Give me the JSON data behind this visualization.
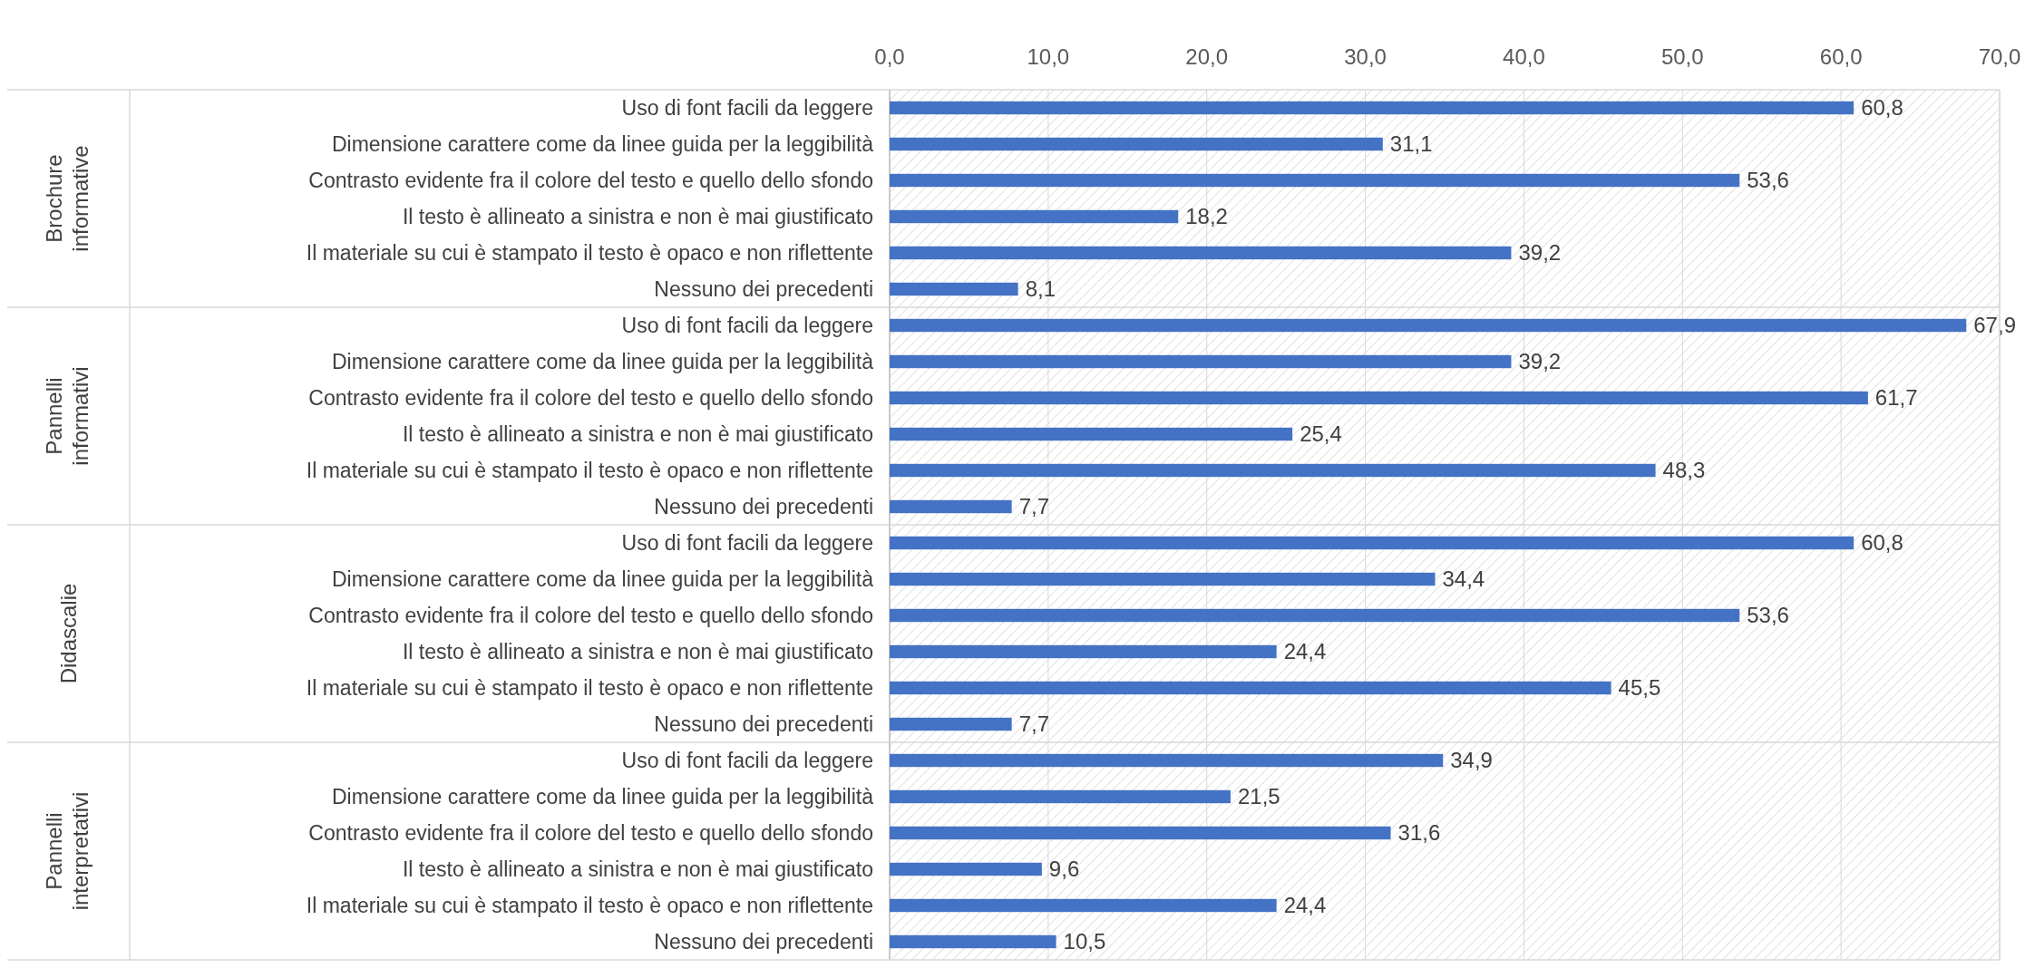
{
  "chart_data": [
    {
      "type": "bar",
      "orientation": "horizontal",
      "ylabel": "Brochure informative",
      "categories": [
        "Uso di font facili da leggere",
        "Dimensione carattere come da linee guida per la leggibilità",
        "Contrasto evidente fra il colore del testo e quello dello sfondo",
        "Il testo è allineato a sinistra e non è mai giustificato",
        "Il materiale su cui è stampato il testo è opaco e non riflettente",
        "Nessuno dei precedenti"
      ],
      "values": [
        60.8,
        31.1,
        53.6,
        18.2,
        39.2,
        8.1
      ],
      "value_labels": [
        "60,8",
        "31,1",
        "53,6",
        "18,2",
        "39,2",
        "8,1"
      ],
      "color": "#4472c4",
      "xlim": [
        0,
        70
      ],
      "xticks": [
        {
          "value": 0,
          "label": "0,0"
        },
        {
          "value": 10,
          "label": "10,0"
        },
        {
          "value": 20,
          "label": "20,0"
        },
        {
          "value": 30,
          "label": "30,0"
        },
        {
          "value": 40,
          "label": "40,0"
        },
        {
          "value": 50,
          "label": "50,0"
        },
        {
          "value": 60,
          "label": "60,0"
        },
        {
          "value": 70,
          "label": "70,0"
        }
      ],
      "grid": "x"
    },
    {
      "type": "bar",
      "orientation": "horizontal",
      "ylabel": "Pannelli informativi",
      "categories": [
        "Uso di font facili da leggere",
        "Dimensione carattere come da linee guida per la leggibilità",
        "Contrasto evidente fra il colore del testo e quello dello sfondo",
        "Il testo è allineato a sinistra e non è mai giustificato",
        "Il materiale su cui è stampato il testo è opaco e non riflettente",
        "Nessuno dei precedenti"
      ],
      "values": [
        67.9,
        39.2,
        61.7,
        25.4,
        48.3,
        7.7
      ],
      "value_labels": [
        "67,9",
        "39,2",
        "61,7",
        "25,4",
        "48,3",
        "7,7"
      ],
      "color": "#4472c4",
      "xlim": [
        0,
        70
      ],
      "tick_labels": "y",
      "grid": "x"
    },
    {
      "type": "bar",
      "orientation": "horizontal",
      "ylabel": "Didascalie",
      "categories": [
        "Uso di font facili da leggere",
        "Dimensione carattere come da linee guida per la leggibilità",
        "Contrasto evidente fra il colore del testo e quello dello sfondo",
        "Il testo è allineato a sinistra e non è mai giustificato",
        "Il materiale su cui è stampato il testo è opaco e non riflettente",
        "Nessuno dei precedenti"
      ],
      "values": [
        60.8,
        34.4,
        53.6,
        24.4,
        45.5,
        7.7
      ],
      "value_labels": [
        "60,8",
        "34,4",
        "53,6",
        "24,4",
        "45,5",
        "7,7"
      ],
      "color": "#4472c4",
      "xlim": [
        0,
        70
      ],
      "tick_labels": "y",
      "grid": "x"
    },
    {
      "type": "bar",
      "orientation": "horizontal",
      "ylabel": "Pannelli interpretativi",
      "categories": [
        "Uso di font facili da leggere",
        "Dimensione carattere come da linee guida per la leggibilità",
        "Contrasto evidente fra il colore del testo e quello dello sfondo",
        "Il testo è allineato a sinistra e non è mai giustificato",
        "Il materiale su cui è stampato il testo è opaco e non riflettente",
        "Nessuno dei precedenti"
      ],
      "values": [
        34.9,
        21.5,
        31.6,
        9.6,
        24.4,
        10.5
      ],
      "value_labels": [
        "34,9",
        "21,5",
        "31,6",
        "9,6",
        "24,4",
        "10,5"
      ],
      "color": "#4472c4",
      "xlim": [
        0,
        70
      ],
      "tick_labels": "y",
      "grid": "x"
    }
  ]
}
